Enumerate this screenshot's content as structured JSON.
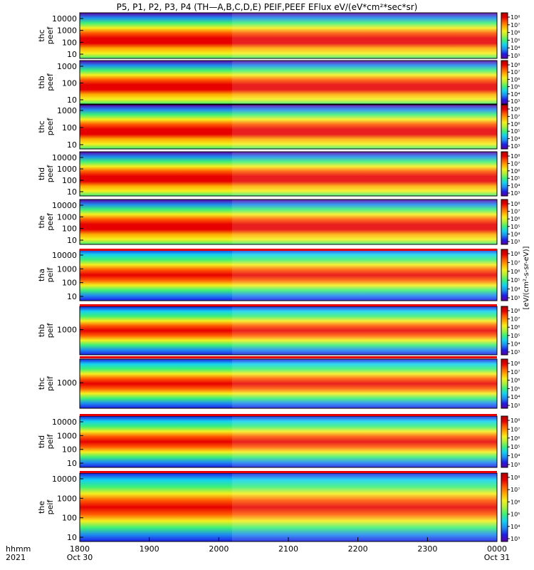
{
  "title": "P5, P1, P2, P3, P4 (TH—A,B,C,D,E) PEIF,PEEF EFlux eV/(eV*cm²*sec*sr)",
  "footer": {
    "time_label": "hhmm",
    "year_label": "2021"
  },
  "chart_data": {
    "type": "heatmap",
    "x_ticks": [
      {
        "label": "1800",
        "sub": "Oct 30"
      },
      {
        "label": "1900",
        "sub": ""
      },
      {
        "label": "2000",
        "sub": ""
      },
      {
        "label": "2100",
        "sub": ""
      },
      {
        "label": "2200",
        "sub": ""
      },
      {
        "label": "2300",
        "sub": ""
      },
      {
        "label": "0000",
        "sub": "Oct 31"
      }
    ],
    "colorbar_title": "[eV/(cm²-s-sr-eV)]",
    "colorscale": [
      "#5a00a8",
      "#1e1ee6",
      "#1e8cf0",
      "#14d2f0",
      "#3cf078",
      "#aaf03c",
      "#f5f01e",
      "#ffaa00",
      "#ff5a00",
      "#e60000",
      "#b40000"
    ],
    "panels": [
      {
        "id": "thc-peef",
        "ylabel": [
          "thc",
          "peef"
        ],
        "yticks": [
          "10000",
          "1000",
          "100",
          "10"
        ],
        "cbar_ticks": [
          "10⁸",
          "10⁷",
          "10⁶",
          "10⁵",
          "10⁴",
          "10³"
        ],
        "bar": false
      },
      {
        "id": "thb-peef",
        "ylabel": [
          "thb",
          "peef"
        ],
        "yticks": [
          "1000",
          "100",
          "10"
        ],
        "cbar_ticks": [
          "10⁸",
          "10⁷",
          "10⁶",
          "10⁵",
          "10⁴",
          "10³"
        ],
        "bar": false
      },
      {
        "id": "thc-peef-2",
        "ylabel": [
          "thc",
          "peef"
        ],
        "yticks": [
          "1000",
          "100",
          "10"
        ],
        "cbar_ticks": [
          "10⁸",
          "10⁷",
          "10⁶",
          "10⁵",
          "10⁴",
          "10³"
        ],
        "bar": false
      },
      {
        "id": "thd-peef",
        "ylabel": [
          "thd",
          "peef"
        ],
        "yticks": [
          "10000",
          "1000",
          "100",
          "10"
        ],
        "cbar_ticks": [
          "10⁸",
          "10⁷",
          "10⁶",
          "10⁵",
          "10⁴",
          "10³"
        ],
        "bar": false
      },
      {
        "id": "the-peef",
        "ylabel": [
          "the",
          "peef"
        ],
        "yticks": [
          "10000",
          "1000",
          "100",
          "10"
        ],
        "cbar_ticks": [
          "10⁸",
          "10⁷",
          "10⁶",
          "10⁵",
          "10⁴",
          "10³"
        ],
        "bar": false
      },
      {
        "id": "tha-peif",
        "ylabel": [
          "tha",
          "peif"
        ],
        "yticks": [
          "10000",
          "1000",
          "100",
          "10"
        ],
        "cbar_ticks": [
          "10⁸",
          "10⁷",
          "10⁶",
          "10⁵",
          "10⁴",
          "10³"
        ],
        "bar": true
      },
      {
        "id": "thb-peif",
        "ylabel": [
          "thb",
          "peif"
        ],
        "yticks": [
          "1000"
        ],
        "cbar_ticks": [
          "10⁸",
          "10⁷",
          "10⁶",
          "10⁵",
          "10⁴",
          "10³"
        ],
        "bar": true
      },
      {
        "id": "thc-peif",
        "ylabel": [
          "thc",
          "peif"
        ],
        "yticks": [
          "1000"
        ],
        "cbar_ticks": [
          "10⁸",
          "10⁷",
          "10⁶",
          "10⁵",
          "10⁴",
          "10³"
        ],
        "bar": true
      },
      {
        "id": "thd-peif",
        "ylabel": [
          "thd",
          "peif"
        ],
        "yticks": [
          "10000",
          "1000",
          "100",
          "10"
        ],
        "cbar_ticks": [
          "10⁸",
          "10⁷",
          "10⁶",
          "10⁵",
          "10⁴",
          "10³"
        ],
        "bar": true
      },
      {
        "id": "the-peif",
        "ylabel": [
          "the",
          "peif"
        ],
        "yticks": [
          "10000",
          "1000",
          "100",
          "10"
        ],
        "cbar_ticks": [
          "10⁸",
          "10⁷",
          "10⁶",
          "10⁵",
          "10⁴",
          "10³"
        ],
        "bar": true
      }
    ]
  }
}
